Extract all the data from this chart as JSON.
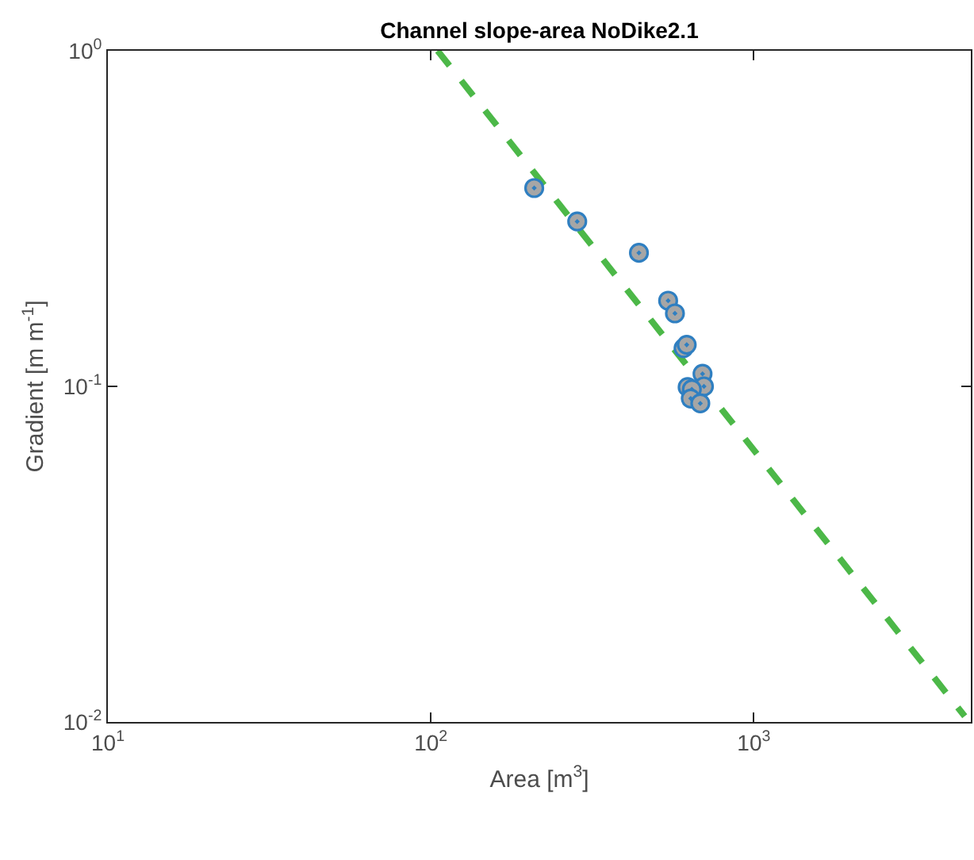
{
  "chart_data": {
    "type": "scatter",
    "title": "Channel slope-area NoDike2.1",
    "xlabel": "Area [m$^{3}$]",
    "ylabel": "Gradient [m m$^{-1}$]",
    "log": "xy",
    "grid": false,
    "xlim": [
      10,
      4700
    ],
    "ylim": [
      0.01,
      1
    ],
    "xticks": [
      {
        "value": 10,
        "label": "10$^{1}$"
      },
      {
        "value": 100,
        "label": "10$^{2}$"
      },
      {
        "value": 1000,
        "label": "10$^{3}$"
      }
    ],
    "yticks": [
      {
        "value": 0.01,
        "label": "10$^{-2}$"
      },
      {
        "value": 0.1,
        "label": "10$^{-1}$"
      },
      {
        "value": 1,
        "label": "10$^{0}$"
      }
    ],
    "series": [
      {
        "marker": "circle",
        "color": "#a6a6a6",
        "x": [
          209,
          284,
          441,
          543,
          570,
          606,
          620,
          694,
          701,
          624,
          643,
          638,
          683
        ],
        "values": [
          0.39,
          0.31,
          0.25,
          0.18,
          0.165,
          0.13,
          0.133,
          0.109,
          0.1,
          0.0995,
          0.098,
          0.092,
          0.089
        ]
      },
      {
        "type": "line",
        "color": "#4cb848",
        "line_style": "dashed",
        "x": [
          105,
          4500
        ],
        "values": [
          1,
          0.0104
        ]
      }
    ]
  }
}
